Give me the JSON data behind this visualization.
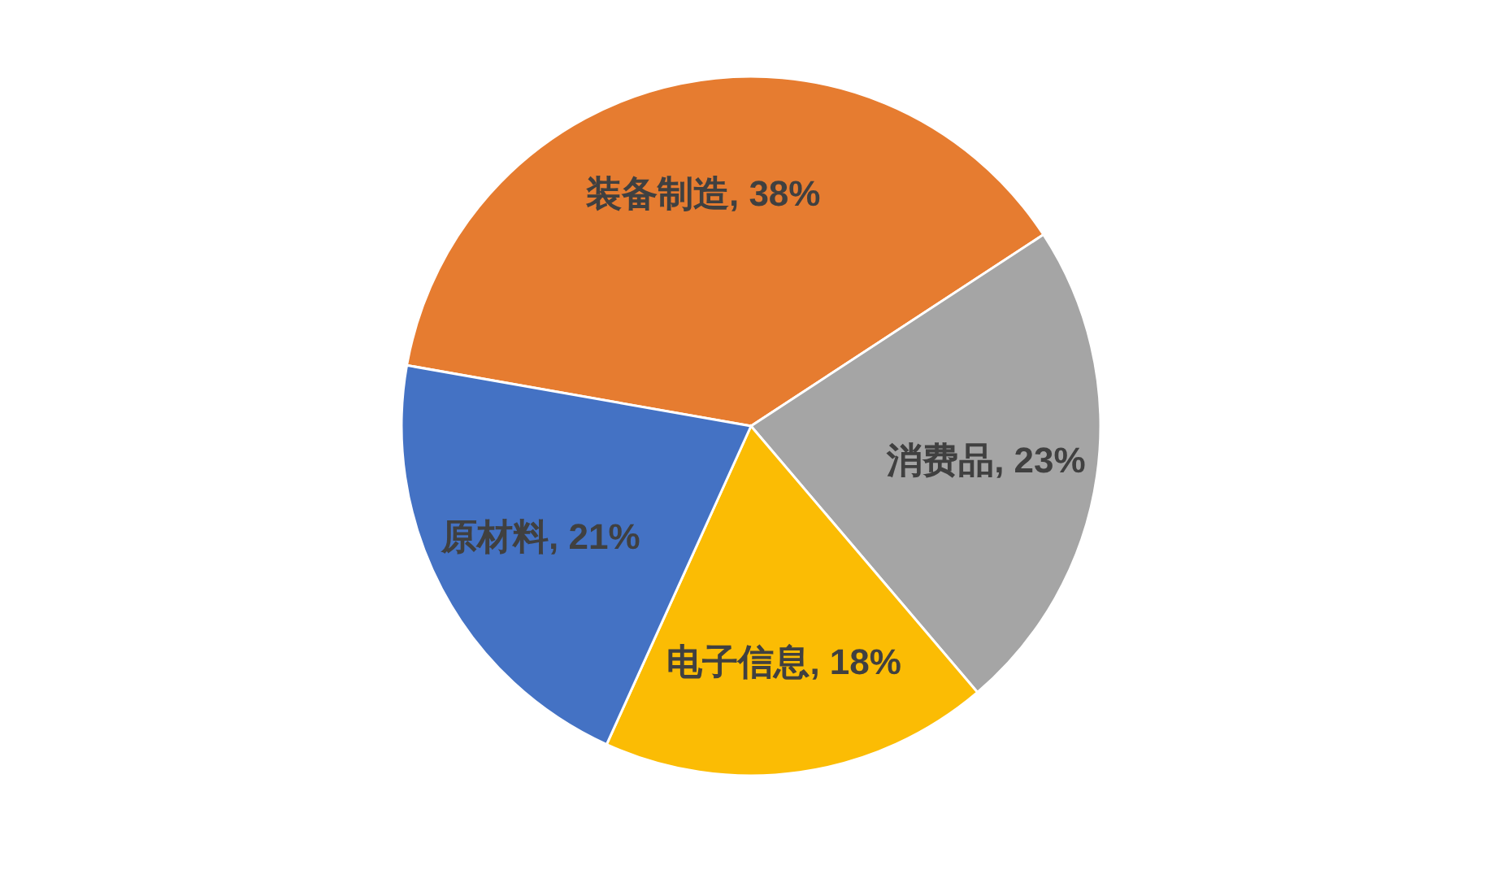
{
  "chart_data": {
    "type": "pie",
    "categories": [
      "装备制造",
      "消费品",
      "电子信息",
      "原材料"
    ],
    "values": [
      38,
      23,
      18,
      21
    ],
    "value_labels": [
      "38%",
      "23%",
      "18%",
      "21%"
    ],
    "colors": [
      "#e67c30",
      "#a5a5a5",
      "#fbbc04",
      "#4472c4"
    ]
  }
}
